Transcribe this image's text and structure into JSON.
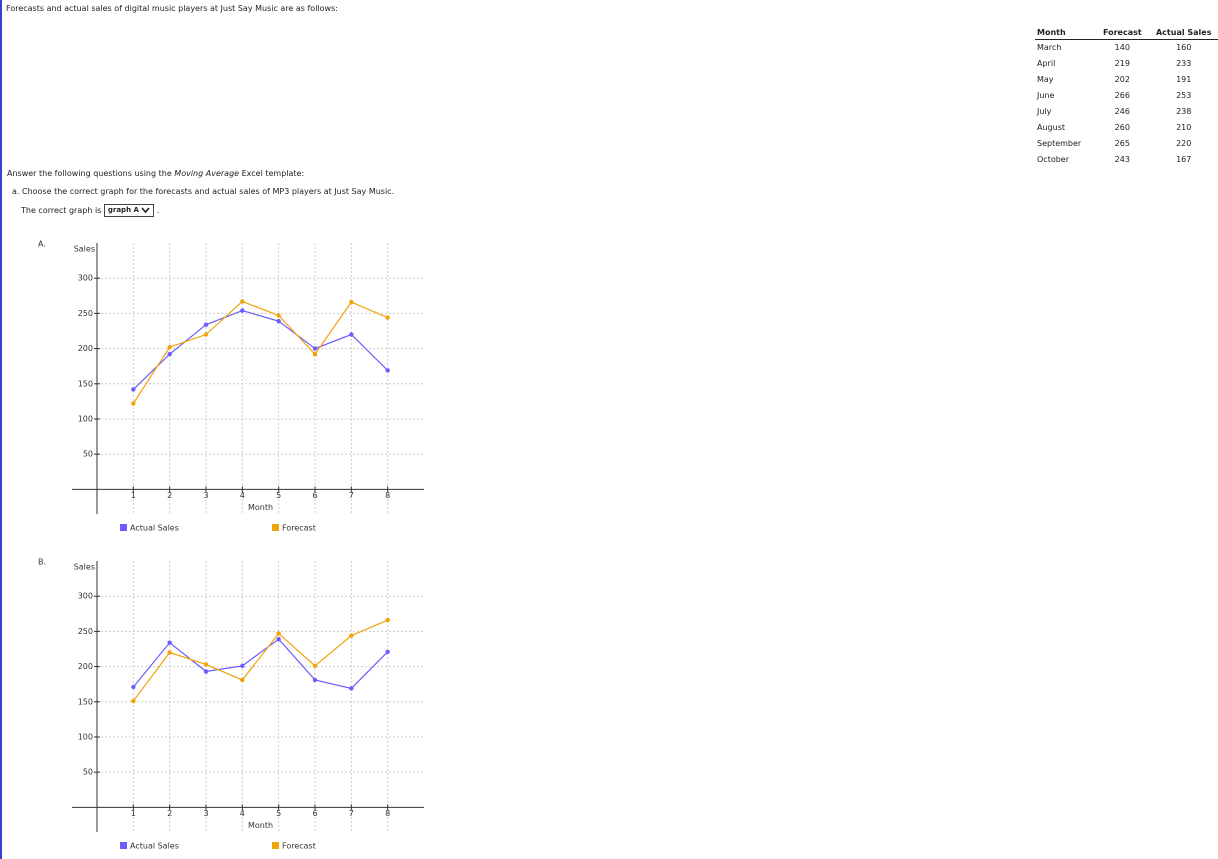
{
  "intro": "Forecasts and actual sales of digital music players at Just Say Music are as follows:",
  "table": {
    "header": [
      "Month",
      "Forecast",
      "Actual Sales"
    ],
    "rows": [
      [
        "March",
        140,
        160
      ],
      [
        "April",
        219,
        233
      ],
      [
        "May",
        202,
        191
      ],
      [
        "June",
        266,
        253
      ],
      [
        "July",
        246,
        238
      ],
      [
        "August",
        260,
        210
      ],
      [
        "September",
        265,
        220
      ],
      [
        "October",
        243,
        167
      ]
    ]
  },
  "instructions": "Answer the following questions using the",
  "template_name": "Moving Average",
  "instructions_end": "Excel template:",
  "question_a": "a. Choose the correct graph for the forecasts and actual sales of MP3 players at Just Say Music.",
  "answer_prefix": "The correct graph is",
  "dropdown": "graph A",
  "answer_suffix": ".",
  "chart_data": [
    {
      "type": "line",
      "label": "A.",
      "y_label": "Sales",
      "x_label": "Month",
      "x": [
        1,
        2,
        3,
        4,
        5,
        6,
        7,
        8
      ],
      "series": [
        {
          "name": "Actual Sales",
          "color": "#6a5cff",
          "values": [
            142,
            192,
            234,
            254,
            239,
            200,
            220,
            169
          ]
        },
        {
          "name": "Forecast",
          "color": "#f0a30a",
          "values": [
            122,
            202,
            220,
            267,
            247,
            192,
            266,
            244
          ]
        }
      ],
      "xlim": [
        0,
        9
      ],
      "ylim": [
        -35,
        350
      ],
      "xticks": [
        1,
        2,
        3,
        4,
        5,
        6,
        7,
        8
      ],
      "yticks": [
        50,
        100,
        150,
        200,
        250,
        300
      ],
      "grid": true
    },
    {
      "type": "line",
      "label": "B.",
      "y_label": "Sales",
      "x_label": "Month",
      "x": [
        1,
        2,
        3,
        4,
        5,
        6,
        7,
        8
      ],
      "series": [
        {
          "name": "Actual Sales",
          "color": "#6a5cff",
          "values": [
            171,
            234,
            193,
            201,
            239,
            181,
            169,
            221
          ]
        },
        {
          "name": "Forecast",
          "color": "#f0a30a",
          "values": [
            151,
            220,
            203,
            181,
            247,
            201,
            244,
            266
          ]
        }
      ],
      "xlim": [
        0,
        9
      ],
      "ylim": [
        -35,
        350
      ],
      "xticks": [
        1,
        2,
        3,
        4,
        5,
        6,
        7,
        8
      ],
      "yticks": [
        50,
        100,
        150,
        200,
        250,
        300
      ],
      "grid": true
    }
  ]
}
